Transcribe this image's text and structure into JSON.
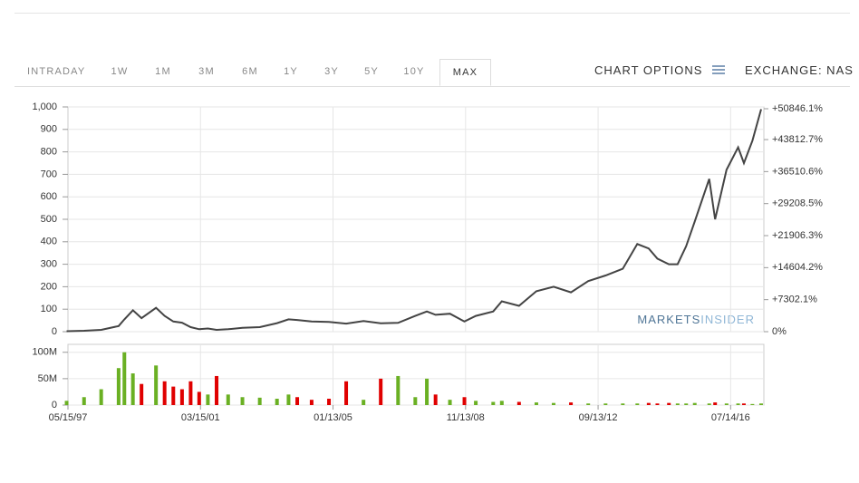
{
  "tabs": [
    "INTRADAY",
    "1W",
    "1M",
    "3M",
    "6M",
    "1Y",
    "3Y",
    "5Y",
    "10Y",
    "MAX"
  ],
  "active_tab": 9,
  "chart_options": "CHART OPTIONS",
  "exchange": "EXCHANGE: NAS",
  "watermark": {
    "first": "MARKETS",
    "second": "INSIDER"
  },
  "chart_data": [
    {
      "type": "line",
      "color": "#444444",
      "x": [
        "1997-05",
        "1997-11",
        "1998-05",
        "1998-11",
        "1999-01",
        "1999-04",
        "1999-07",
        "1999-12",
        "2000-03",
        "2000-06",
        "2000-09",
        "2000-12",
        "2001-03",
        "2001-06",
        "2001-09",
        "2002-01",
        "2002-06",
        "2002-12",
        "2003-06",
        "2003-10",
        "2004-01",
        "2004-06",
        "2004-12",
        "2005-06",
        "2005-12",
        "2006-06",
        "2006-12",
        "2007-06",
        "2007-10",
        "2008-01",
        "2008-06",
        "2008-11",
        "2009-03",
        "2009-09",
        "2009-12",
        "2010-06",
        "2010-12",
        "2011-06",
        "2011-12",
        "2012-06",
        "2012-12",
        "2013-06",
        "2013-11",
        "2014-03",
        "2014-06",
        "2014-10",
        "2015-01",
        "2015-04",
        "2015-07",
        "2015-12",
        "2016-02",
        "2016-06",
        "2016-10",
        "2016-12",
        "2017-03",
        "2017-06"
      ],
      "values": [
        2,
        4,
        8,
        25,
        55,
        95,
        60,
        106,
        70,
        45,
        40,
        20,
        11,
        14,
        8,
        11,
        17,
        20,
        38,
        55,
        52,
        45,
        43,
        36,
        47,
        37,
        39,
        70,
        90,
        75,
        80,
        45,
        70,
        90,
        135,
        115,
        180,
        200,
        175,
        225,
        250,
        280,
        390,
        370,
        325,
        300,
        300,
        380,
        490,
        680,
        500,
        720,
        820,
        750,
        850,
        990
      ],
      "ylim": [
        0,
        1000
      ],
      "yticks": [
        0,
        100,
        200,
        300,
        400,
        500,
        600,
        700,
        800,
        900,
        {
          "value": 1000,
          "label": "1,000"
        }
      ],
      "y2lim": [
        0,
        51260
      ],
      "y2ticks": [
        {
          "value": 0,
          "label": "0%"
        },
        {
          "value": 7302.1,
          "label": "+7302.1%"
        },
        {
          "value": 14604.2,
          "label": "+14604.2%"
        },
        {
          "value": 21906.3,
          "label": "+21906.3%"
        },
        {
          "value": 29208.5,
          "label": "+29208.5%"
        },
        {
          "value": 36510.6,
          "label": "+36510.6%"
        },
        {
          "value": 43812.7,
          "label": "+43812.7%"
        },
        {
          "value": 50846.1,
          "label": "+50846.1%"
        }
      ],
      "y2_current_color": "#6ab023",
      "grid": true
    },
    {
      "type": "bar",
      "up_color": "#6ab023",
      "down_color": "#e00000",
      "values": [
        8000000,
        15000000,
        30000000,
        70000000,
        100000000,
        60000000,
        40000000,
        75000000,
        45000000,
        35000000,
        30000000,
        45000000,
        25000000,
        20000000,
        55000000,
        20000000,
        15000000,
        14000000,
        12000000,
        20000000,
        15000000,
        10000000,
        12000000,
        45000000,
        10000000,
        50000000,
        55000000,
        15000000,
        50000000,
        20000000,
        10000000,
        15000000,
        8000000,
        6000000,
        8000000,
        6000000,
        5000000,
        4000000,
        5000000,
        3000000,
        3000000,
        3000000,
        3000000,
        4000000,
        3000000,
        4000000,
        3000000,
        3000000,
        4000000,
        3000000,
        5000000,
        3000000,
        3000000,
        3000000,
        2000000,
        3000000
      ],
      "ylim": [
        0,
        115000000
      ],
      "yticks": [
        0,
        {
          "value": 50000000,
          "label": "50M"
        },
        {
          "value": 100000000,
          "label": "100M"
        }
      ],
      "xlim": [
        "1997-05-15",
        "2017-06-30"
      ],
      "xticks": [
        {
          "value": "1997-05-15",
          "label": "05/15/97"
        },
        {
          "value": "2001-03-15",
          "label": "03/15/01"
        },
        {
          "value": "2005-01-13",
          "label": "01/13/05"
        },
        {
          "value": "2008-11-13",
          "label": "11/13/08"
        },
        {
          "value": "2012-09-13",
          "label": "09/13/12"
        },
        {
          "value": "2016-07-14",
          "label": "07/14/16"
        }
      ],
      "grid": true
    }
  ]
}
